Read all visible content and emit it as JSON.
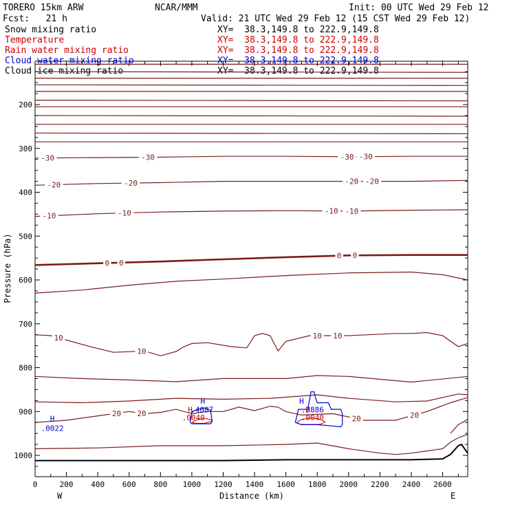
{
  "header": {
    "model": "TORERO  15km ARW",
    "center": "NCAR/MMM",
    "init": "Init: 00 UTC Wed 29 Feb 12",
    "fcst": "Fcst:   21 h",
    "valid": "Valid: 21 UTC Wed 29 Feb 12 (15 CST Wed 29 Feb 12)"
  },
  "fields": [
    {
      "name": "Snow mixing ratio",
      "xy": "XY=  38.3,149.8 to 222.9,149.8",
      "color": "#000000"
    },
    {
      "name": "Temperature",
      "xy": "XY=  38.3,149.8 to 222.9,149.8",
      "color": "#cc0000"
    },
    {
      "name": "Rain water mixing ratio",
      "xy": "XY=  38.3,149.8 to 222.9,149.8",
      "color": "#cc0000"
    },
    {
      "name": "Cloud water mixing ratio",
      "xy": "XY=  38.3,149.8 to 222.9,149.8",
      "color": "#0000cc"
    },
    {
      "name": "Cloud ice mixing ratio",
      "xy": "XY=  38.3,149.8 to 222.9,149.8",
      "color": "#000000"
    }
  ],
  "chart_data": {
    "type": "line",
    "subtype": "vertical cross-section",
    "xlabel": "Distance (km)",
    "ylabel": "Pressure (hPa)",
    "xlim": [
      0,
      2760
    ],
    "ylim": [
      1050,
      100
    ],
    "xticks": [
      0,
      200,
      400,
      600,
      800,
      1000,
      1200,
      1400,
      1600,
      1800,
      2000,
      2200,
      2400,
      2600
    ],
    "yticks": [
      200,
      300,
      400,
      500,
      600,
      700,
      800,
      900,
      1000
    ],
    "x_end_labels": {
      "left": "W",
      "right": "E"
    },
    "isotherm_color": "#7a1a1a",
    "terrain_color": "#000000",
    "upper_isotherms_p": [
      108,
      125,
      140,
      155,
      170,
      190,
      205,
      225,
      245,
      265,
      285
    ],
    "isotherms": [
      {
        "label": "-30",
        "x": [
          0,
          400,
          800,
          1200,
          1600,
          2000,
          2400,
          2760
        ],
        "p": [
          322,
          321,
          320,
          318,
          318,
          319,
          318,
          318
        ],
        "label_positions": [
          80,
          720,
          1990,
          2110
        ]
      },
      {
        "label": "-20",
        "x": [
          0,
          400,
          800,
          1200,
          1600,
          2000,
          2400,
          2760
        ],
        "p": [
          384,
          380,
          378,
          375,
          375,
          375,
          375,
          373
        ],
        "label_positions": [
          120,
          610,
          2020,
          2150
        ]
      },
      {
        "label": "-10",
        "x": [
          0,
          400,
          800,
          1200,
          1600,
          2000,
          2400,
          2760
        ],
        "p": [
          455,
          449,
          445,
          443,
          442,
          443,
          441,
          440
        ],
        "label_positions": [
          90,
          570,
          1890,
          2020
        ]
      },
      {
        "label": "0",
        "thick": true,
        "x": [
          0,
          300,
          800,
          1200,
          1600,
          2000,
          2400,
          2760
        ],
        "p": [
          566,
          563,
          558,
          553,
          548,
          544,
          543,
          543
        ],
        "label_positions": [
          460,
          550,
          1940,
          2040
        ]
      },
      {
        "label": "",
        "x": [
          0,
          300,
          600,
          900,
          1200,
          1600,
          2000,
          2400,
          2600,
          2760
        ],
        "p": [
          630,
          623,
          612,
          603,
          598,
          590,
          584,
          582,
          588,
          600
        ]
      },
      {
        "label": "10",
        "x": [
          0,
          100,
          350,
          500,
          700,
          800,
          900,
          950,
          1000,
          1100,
          1250,
          1350,
          1400,
          1450,
          1500,
          1550,
          1600,
          1750,
          2000,
          2300,
          2400,
          2500,
          2600,
          2700,
          2760
        ],
        "p": [
          725,
          727,
          752,
          765,
          762,
          773,
          763,
          752,
          745,
          743,
          752,
          755,
          727,
          722,
          727,
          762,
          740,
          727,
          727,
          722,
          722,
          720,
          727,
          752,
          745
        ],
        "label_positions": [
          150,
          680,
          1800,
          1930
        ]
      },
      {
        "label": "",
        "x": [
          0,
          300,
          600,
          900,
          1200,
          1600,
          1800,
          2000,
          2400,
          2760
        ],
        "p": [
          820,
          825,
          828,
          832,
          825,
          825,
          818,
          820,
          833,
          820
        ]
      },
      {
        "label": "",
        "x": [
          0,
          300,
          600,
          900,
          1200,
          1500,
          1800,
          2000,
          2300,
          2500,
          2700,
          2760
        ],
        "p": [
          878,
          880,
          876,
          870,
          872,
          870,
          862,
          870,
          878,
          876,
          860,
          862
        ]
      },
      {
        "label": "20",
        "x": [
          0,
          200,
          400,
          600,
          700,
          800,
          900,
          1000,
          1100,
          1200,
          1300,
          1400,
          1500,
          1550,
          1600,
          1700,
          1900,
          2100,
          2300,
          2500,
          2650,
          2760
        ],
        "p": [
          925,
          920,
          910,
          900,
          905,
          902,
          895,
          905,
          900,
          900,
          890,
          898,
          888,
          890,
          900,
          908,
          905,
          920,
          920,
          900,
          880,
          868
        ],
        "label_positions": [
          520,
          680,
          2050,
          2420
        ]
      },
      {
        "label": "",
        "x": [
          2650,
          2700,
          2760
        ],
        "p": [
          950,
          930,
          918
        ]
      },
      {
        "label": "",
        "x": [
          0,
          400,
          800,
          1200,
          1600,
          1800,
          2000,
          2200,
          2300,
          2400,
          2500,
          2600,
          2650,
          2700,
          2760
        ],
        "p": [
          985,
          983,
          978,
          978,
          975,
          972,
          985,
          995,
          998,
          995,
          990,
          985,
          970,
          960,
          952
        ]
      }
    ],
    "terrain": {
      "x": [
        0,
        600,
        1200,
        1600,
        2000,
        2400,
        2600,
        2650,
        2700,
        2720,
        2760
      ],
      "p": [
        1012,
        1012,
        1012,
        1010,
        1010,
        1010,
        1008,
        998,
        978,
        975,
        995
      ]
    },
    "cloud_water": [
      {
        "x": [
          990,
          1000,
          1040,
          1080,
          1120,
          1125,
          1130,
          1120,
          1080,
          1040,
          1000,
          990
        ],
        "p": [
          925,
          900,
          895,
          892,
          897,
          912,
          922,
          928,
          928,
          928,
          928,
          925
        ]
      },
      {
        "x": [
          1660,
          1680,
          1740,
          1760,
          1780,
          1790,
          1800,
          1870,
          1890,
          1900,
          1920,
          1950,
          1960,
          1960,
          1950,
          1900,
          1800,
          1700,
          1660
        ],
        "p": [
          925,
          895,
          895,
          855,
          855,
          870,
          880,
          880,
          895,
          895,
          895,
          895,
          905,
          930,
          935,
          933,
          930,
          930,
          925
        ]
      }
    ],
    "rain_water": [
      {
        "x": [
          1000,
          1040,
          1080,
          1120,
          1130,
          1080,
          1020,
          1000
        ],
        "p": [
          925,
          918,
          916,
          918,
          922,
          927,
          927,
          925
        ]
      },
      {
        "x": [
          1670,
          1700,
          1760,
          1820,
          1850,
          1820,
          1750,
          1690,
          1670
        ],
        "p": [
          925,
          918,
          915,
          918,
          924,
          929,
          930,
          929,
          925
        ]
      }
    ],
    "annotations": [
      {
        "text": "H",
        "x": 110,
        "p": 922,
        "color": "#0000cc"
      },
      {
        "text": ".0022",
        "x": 110,
        "p": 944,
        "color": "#0000cc"
      },
      {
        "text": "H",
        "x": 1070,
        "p": 882,
        "color": "#0000cc"
      },
      {
        "text": ".4087",
        "x": 1065,
        "p": 902,
        "color": "#0000cc"
      },
      {
        "text": "H",
        "x": 990,
        "p": 902,
        "color": "#cc0000"
      },
      {
        "text": ".0040",
        "x": 1010,
        "p": 920,
        "color": "#cc0000"
      },
      {
        "text": "H",
        "x": 1700,
        "p": 882,
        "color": "#0000cc"
      },
      {
        "text": "H",
        "x": 1740,
        "p": 902,
        "color": "#cc0000"
      },
      {
        "text": ".2886",
        "x": 1770,
        "p": 902,
        "color": "#0000cc"
      },
      {
        "text": ".0040",
        "x": 1770,
        "p": 920,
        "color": "#cc0000"
      }
    ],
    "grid": false,
    "legend": "top-left header"
  }
}
